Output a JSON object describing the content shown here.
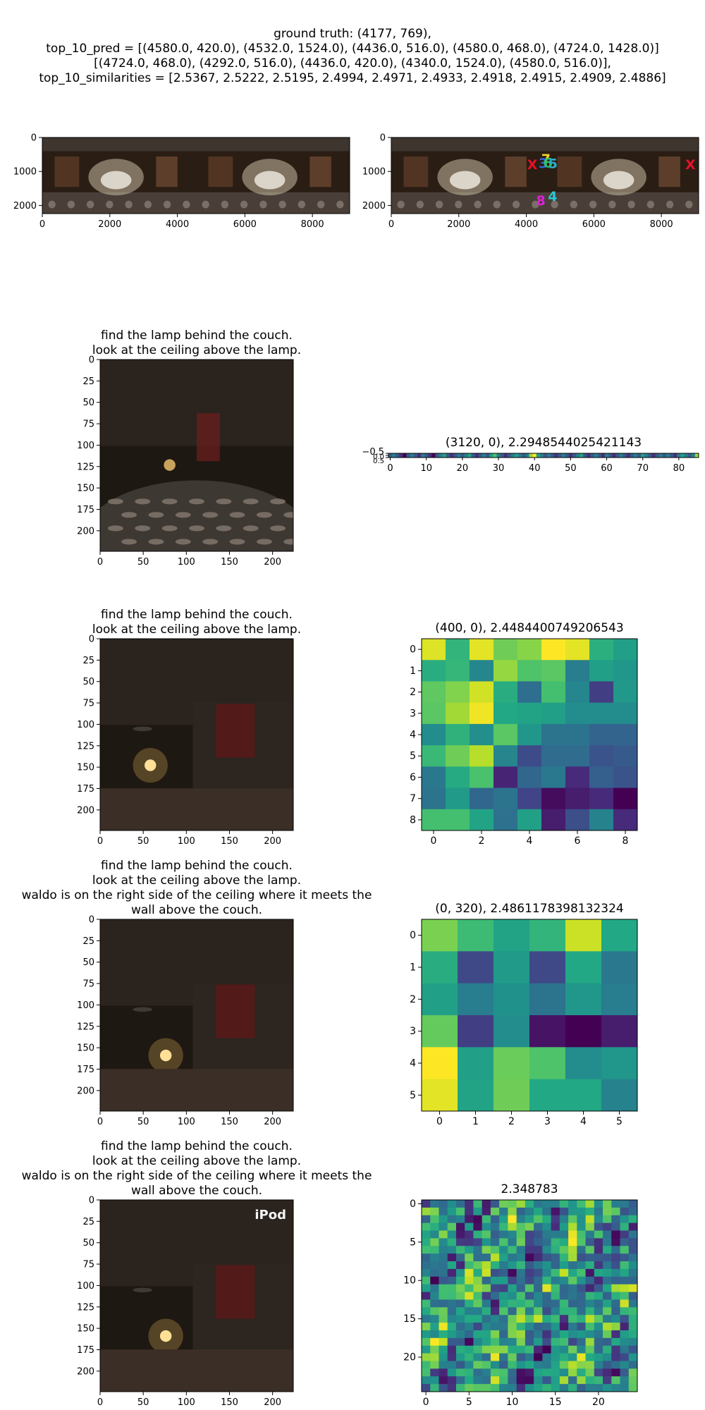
{
  "header": {
    "lines": [
      "ground truth: (4177, 769),",
      "top_10_pred = [(4580.0, 420.0), (4532.0, 1524.0), (4436.0, 516.0), (4580.0, 468.0), (4724.0, 1428.0)]",
      "[(4724.0, 468.0), (4292.0, 516.0), (4436.0, 420.0), (4340.0, 1524.0), (4580.0, 516.0)],",
      "top_10_similarities = [2.5367, 2.5222, 2.5195, 2.4994, 2.4971, 2.4933, 2.4918, 2.4915, 2.4909, 2.4886]"
    ]
  },
  "colors": {
    "viridis": [
      "#440154",
      "#482475",
      "#414487",
      "#355f8d",
      "#2a788e",
      "#21918c",
      "#22a884",
      "#44bf70",
      "#7ad151",
      "#bddf26",
      "#fde725"
    ]
  },
  "chart_data": [
    {
      "type": "image",
      "id": "panorama_left",
      "title": "",
      "x_ticks": [
        0,
        2000,
        4000,
        6000,
        8000
      ],
      "y_ticks": [
        0,
        1000,
        2000
      ],
      "xlim": [
        0,
        9104
      ],
      "ylim": [
        2240,
        0
      ]
    },
    {
      "type": "scatter",
      "id": "panorama_right",
      "title": "",
      "x_ticks": [
        0,
        2000,
        4000,
        6000,
        8000
      ],
      "y_ticks": [
        0,
        1000,
        2000
      ],
      "xlim": [
        0,
        9104
      ],
      "ylim": [
        2240,
        0
      ],
      "markers": [
        {
          "label": "X",
          "x": 4177,
          "y": 769,
          "color": "#e8102a"
        },
        {
          "label": "X",
          "x": 8860,
          "y": 769,
          "color": "#e8102a"
        },
        {
          "label": "7",
          "x": 4580,
          "y": 600,
          "color": "#f5d327"
        },
        {
          "label": "3",
          "x": 4500,
          "y": 730,
          "color": "#2f6ad6"
        },
        {
          "label": "6",
          "x": 4640,
          "y": 720,
          "color": "#2fc46a"
        },
        {
          "label": "5",
          "x": 4790,
          "y": 740,
          "color": "#29b0c9"
        },
        {
          "label": "8",
          "x": 4430,
          "y": 1820,
          "color": "#e020d8"
        },
        {
          "label": "4",
          "x": 4780,
          "y": 1700,
          "color": "#29c9d6"
        }
      ]
    },
    {
      "type": "image",
      "id": "view1",
      "title_lines": [
        "find the lamp behind the couch.",
        "look at the ceiling above the lamp."
      ],
      "x_ticks": [
        0,
        50,
        100,
        150,
        200
      ],
      "y_ticks": [
        0,
        25,
        50,
        75,
        100,
        125,
        150,
        175,
        200
      ],
      "xlim": [
        0,
        224
      ],
      "ylim": [
        224,
        0
      ]
    },
    {
      "type": "heatmap",
      "id": "strip",
      "title": "(3120, 0), 2.2948544025421143",
      "x_ticks": [
        0,
        10,
        20,
        30,
        40,
        50,
        60,
        70,
        80
      ],
      "y_ticks": [
        "−0.5",
        "0.0",
        "0.5"
      ],
      "values": [
        [
          5,
          6,
          5,
          4,
          3,
          5,
          6,
          5,
          4,
          6,
          5,
          4,
          3,
          5,
          6,
          7,
          5,
          4,
          5,
          6,
          5,
          6,
          7,
          5,
          4,
          5,
          6,
          5,
          7,
          8,
          6,
          5,
          4,
          5,
          6,
          7,
          6,
          5,
          6,
          9,
          10,
          7,
          6,
          5,
          6,
          5,
          4,
          5,
          6,
          5,
          4,
          5,
          6,
          7,
          5,
          4,
          5,
          6,
          5,
          4,
          6,
          5,
          4,
          5,
          6,
          5,
          4,
          5,
          6,
          5,
          7,
          6,
          5,
          4,
          5,
          6,
          5,
          6,
          5,
          4,
          6,
          7,
          6,
          5,
          6,
          9
        ]
      ]
    },
    {
      "type": "image",
      "id": "view2",
      "title_lines": [
        "find the lamp behind the couch.",
        "look at the ceiling above the lamp."
      ],
      "x_ticks": [
        0,
        50,
        100,
        150,
        200
      ],
      "y_ticks": [
        0,
        25,
        50,
        75,
        100,
        125,
        150,
        175,
        200
      ],
      "xlim": [
        0,
        224
      ],
      "ylim": [
        224,
        0
      ]
    },
    {
      "type": "heatmap",
      "id": "grid9",
      "title": "(400, 0), 2.4484400749206543",
      "x_ticks": [
        0,
        2,
        4,
        6,
        8
      ],
      "y_ticks": [
        0,
        1,
        2,
        3,
        4,
        5,
        6,
        7,
        8
      ],
      "values": [
        [
          9.5,
          6.5,
          9.6,
          7.8,
          8.2,
          10,
          9.6,
          6.3,
          5.6
        ],
        [
          6.2,
          6.6,
          4.6,
          8.4,
          7.2,
          7.4,
          4.2,
          5.6,
          5.2
        ],
        [
          7.5,
          8.1,
          9.3,
          6.2,
          3.6,
          7.0,
          4.6,
          1.8,
          5.3
        ],
        [
          7.4,
          8.6,
          9.8,
          6.0,
          5.8,
          5.6,
          4.8,
          4.8,
          4.8
        ],
        [
          4.8,
          6.4,
          4.9,
          7.4,
          5.2,
          3.8,
          3.8,
          3.2,
          3.2
        ],
        [
          6.7,
          7.8,
          8.9,
          4.5,
          2.3,
          3.5,
          3.5,
          2.6,
          2.8
        ],
        [
          4.0,
          6.1,
          7.1,
          1.0,
          3.3,
          4.0,
          1.2,
          3.0,
          2.6
        ],
        [
          3.8,
          5.4,
          3.3,
          3.8,
          2.0,
          0.3,
          0.8,
          1.2,
          0.0
        ],
        [
          7.0,
          7.0,
          5.8,
          3.7,
          5.6,
          0.8,
          2.4,
          4.4,
          1.2
        ]
      ]
    },
    {
      "type": "image",
      "id": "view3",
      "title_lines": [
        "find the lamp behind the couch.",
        "look at the ceiling above the lamp.",
        "waldo is on the right side of the ceiling where it meets the",
        "wall above the couch."
      ],
      "x_ticks": [
        0,
        50,
        100,
        150,
        200
      ],
      "y_ticks": [
        0,
        25,
        50,
        75,
        100,
        125,
        150,
        175,
        200
      ],
      "xlim": [
        0,
        224
      ],
      "ylim": [
        224,
        0
      ]
    },
    {
      "type": "heatmap",
      "id": "grid6",
      "title": "(0, 320), 2.4861178398132324",
      "x_ticks": [
        0,
        1,
        2,
        3,
        4,
        5
      ],
      "y_ticks": [
        0,
        1,
        2,
        3,
        4,
        5
      ],
      "values": [
        [
          8.0,
          6.8,
          5.8,
          6.5,
          9.2,
          6.0
        ],
        [
          6.2,
          2.2,
          5.4,
          2.2,
          6.0,
          4.0
        ],
        [
          5.6,
          4.2,
          5.0,
          3.8,
          5.2,
          4.2
        ],
        [
          7.6,
          1.8,
          4.8,
          0.5,
          0.0,
          0.8
        ],
        [
          10.0,
          5.6,
          7.7,
          7.2,
          4.8,
          5.2
        ],
        [
          9.6,
          5.8,
          7.8,
          6.0,
          6.0,
          4.4
        ]
      ]
    },
    {
      "type": "image",
      "id": "view4",
      "title_lines": [
        "find the lamp behind the couch.",
        "look at the ceiling above the lamp.",
        "waldo is on the right side of the ceiling where it meets the",
        "wall above the couch."
      ],
      "watermark": "iPod",
      "x_ticks": [
        0,
        50,
        100,
        150,
        200
      ],
      "y_ticks": [
        0,
        25,
        50,
        75,
        100,
        125,
        150,
        175,
        200
      ],
      "xlim": [
        0,
        224
      ],
      "ylim": [
        224,
        0
      ]
    },
    {
      "type": "heatmap",
      "id": "grid25",
      "title": "2.348783",
      "x_ticks": [
        0,
        5,
        10,
        15,
        20
      ],
      "y_ticks": [
        0,
        5,
        10,
        15,
        20
      ],
      "size": 25
    }
  ]
}
